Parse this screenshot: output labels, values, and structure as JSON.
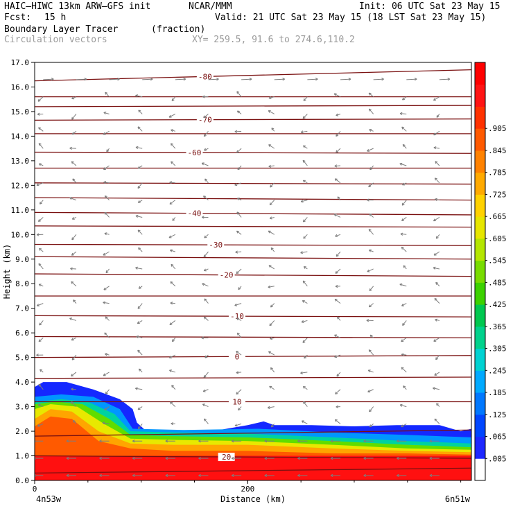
{
  "header": {
    "model": "HAIC–HIWC 13km ARW–GFS init",
    "org": "NCAR/MMM",
    "init": "Init: 06 UTC Sat 23 May 15",
    "fcst_label": "Fcst:",
    "fcst_value": "15 h",
    "valid": "Valid: 21 UTC Sat 23 May 15 (18 LST Sat 23 May 15)",
    "field_name": "Boundary Layer Tracer",
    "field_units": "(fraction)",
    "overlay": "Circulation vectors",
    "xy": "XY= 259.5, 91.6 to 274.6,110.2"
  },
  "chart_data": {
    "type": "heatmap",
    "xlabel": "Distance (km)",
    "ylabel": "Height (km)",
    "xlim": [
      0,
      410
    ],
    "ylim": [
      0,
      17
    ],
    "x_ticks": [
      "0",
      "200"
    ],
    "y_ticks": [
      "0.0",
      "1.0",
      "2.0",
      "3.0",
      "4.0",
      "5.0",
      "6.0",
      "7.0",
      "8.0",
      "9.0",
      "10.0",
      "11.0",
      "12.0",
      "13.0",
      "14.0",
      "15.0",
      "16.0",
      "17.0"
    ],
    "x_endpoints": {
      "left": "4n53w",
      "right": "6n51w"
    },
    "tracer_layers": [
      {
        "level": 0.95,
        "color": "#ff1010",
        "top": [
          [
            0,
            1.0
          ],
          [
            80,
            1.0
          ],
          [
            160,
            1.0
          ],
          [
            260,
            1.0
          ],
          [
            340,
            1.0
          ],
          [
            410,
            1.0
          ]
        ]
      },
      {
        "level": 0.85,
        "color": "#ff5a00",
        "top": [
          [
            0,
            2.2
          ],
          [
            15,
            2.6
          ],
          [
            35,
            2.5
          ],
          [
            60,
            1.6
          ],
          [
            90,
            1.3
          ],
          [
            130,
            1.2
          ],
          [
            200,
            1.2
          ],
          [
            280,
            1.1
          ],
          [
            350,
            1.1
          ],
          [
            410,
            1.05
          ]
        ]
      },
      {
        "level": 0.75,
        "color": "#ffa500",
        "top": [
          [
            0,
            2.5
          ],
          [
            15,
            2.9
          ],
          [
            35,
            2.8
          ],
          [
            60,
            2.0
          ],
          [
            90,
            1.5
          ],
          [
            130,
            1.45
          ],
          [
            200,
            1.45
          ],
          [
            280,
            1.3
          ],
          [
            350,
            1.2
          ],
          [
            410,
            1.15
          ]
        ]
      },
      {
        "level": 0.6,
        "color": "#e8e800",
        "top": [
          [
            0,
            2.9
          ],
          [
            15,
            3.1
          ],
          [
            40,
            3.0
          ],
          [
            65,
            2.3
          ],
          [
            90,
            1.7
          ],
          [
            130,
            1.65
          ],
          [
            200,
            1.6
          ],
          [
            280,
            1.45
          ],
          [
            350,
            1.3
          ],
          [
            410,
            1.25
          ]
        ]
      },
      {
        "level": 0.45,
        "color": "#60dd00",
        "top": [
          [
            0,
            3.1
          ],
          [
            20,
            3.2
          ],
          [
            45,
            3.1
          ],
          [
            70,
            2.5
          ],
          [
            90,
            1.85
          ],
          [
            130,
            1.8
          ],
          [
            200,
            1.75
          ],
          [
            280,
            1.6
          ],
          [
            350,
            1.45
          ],
          [
            410,
            1.35
          ]
        ]
      },
      {
        "level": 0.3,
        "color": "#00d2a0",
        "top": [
          [
            0,
            3.2
          ],
          [
            25,
            3.3
          ],
          [
            50,
            3.2
          ],
          [
            75,
            2.7
          ],
          [
            90,
            2.0
          ],
          [
            130,
            1.95
          ],
          [
            200,
            1.9
          ],
          [
            280,
            1.75
          ],
          [
            350,
            1.6
          ],
          [
            410,
            1.5
          ]
        ]
      },
      {
        "level": 0.15,
        "color": "#0096ff",
        "top": [
          [
            0,
            3.4
          ],
          [
            25,
            3.5
          ],
          [
            55,
            3.4
          ],
          [
            80,
            2.9
          ],
          [
            92,
            2.1
          ],
          [
            140,
            2.05
          ],
          [
            210,
            2.1
          ],
          [
            280,
            1.95
          ],
          [
            350,
            1.85
          ],
          [
            410,
            1.75
          ]
        ]
      },
      {
        "level": 0.05,
        "color": "#1428ff",
        "top": [
          [
            0,
            3.8
          ],
          [
            8,
            4.0
          ],
          [
            30,
            4.0
          ],
          [
            55,
            3.7
          ],
          [
            80,
            3.3
          ],
          [
            92,
            2.9
          ],
          [
            96,
            2.35
          ],
          [
            105,
            2.0
          ],
          [
            130,
            1.9
          ],
          [
            160,
            1.95
          ],
          [
            180,
            2.1
          ],
          [
            200,
            2.25
          ],
          [
            215,
            2.4
          ],
          [
            225,
            2.25
          ],
          [
            260,
            2.25
          ],
          [
            300,
            2.2
          ],
          [
            340,
            2.25
          ],
          [
            380,
            2.25
          ],
          [
            400,
            2.0
          ],
          [
            410,
            2.1
          ]
        ]
      }
    ],
    "temperature_contours": [
      {
        "label": "-80",
        "y0": 16.25,
        "y1": 16.7,
        "lx": 160
      },
      {
        "label": "",
        "y0": 15.6,
        "y1": 15.6
      },
      {
        "label": "",
        "y0": 15.2,
        "y1": 15.25
      },
      {
        "label": "-70",
        "y0": 14.65,
        "y1": 14.7,
        "lx": 160
      },
      {
        "label": "",
        "y0": 14.1,
        "y1": 14.1
      },
      {
        "label": "-60",
        "y0": 13.35,
        "y1": 13.3,
        "lx": 150
      },
      {
        "label": "",
        "y0": 12.7,
        "y1": 12.7
      },
      {
        "label": "",
        "y0": 12.1,
        "y1": 12.05
      },
      {
        "label": "",
        "y0": 11.5,
        "y1": 11.4
      },
      {
        "label": "-40",
        "y0": 10.9,
        "y1": 10.8,
        "lx": 150
      },
      {
        "label": "",
        "y0": 10.35,
        "y1": 10.3
      },
      {
        "label": "-30",
        "y0": 9.6,
        "y1": 9.55,
        "lx": 170
      },
      {
        "label": "",
        "y0": 9.1,
        "y1": 9.0
      },
      {
        "label": "-20",
        "y0": 8.4,
        "y1": 8.3,
        "lx": 180
      },
      {
        "label": "",
        "y0": 7.5,
        "y1": 7.5
      },
      {
        "label": "-10",
        "y0": 6.7,
        "y1": 6.65,
        "lx": 190
      },
      {
        "label": "",
        "y0": 5.85,
        "y1": 5.8
      },
      {
        "label": "0",
        "y0": 5.0,
        "y1": 5.08,
        "lx": 190
      },
      {
        "label": "",
        "y0": 4.15,
        "y1": 4.2
      },
      {
        "label": "10",
        "y0": 3.2,
        "y1": 3.2,
        "lx": 190
      },
      {
        "label": "",
        "y0": 1.8,
        "y1": 2.05
      },
      {
        "label": "20",
        "y0": 1.0,
        "y1": 0.9,
        "lx": 180
      },
      {
        "label": "",
        "y0": 0.3,
        "y1": 0.5
      }
    ],
    "colorbar": {
      "colors": [
        "#ffffff",
        "#1e28ff",
        "#0046ff",
        "#0078ff",
        "#00aaff",
        "#00d2d2",
        "#00d28c",
        "#00c850",
        "#3cd200",
        "#78dc00",
        "#b4e600",
        "#e6e600",
        "#ffd200",
        "#ffaa00",
        "#ff8200",
        "#ff5a00",
        "#ff3200",
        "#ff1414",
        "#ff0000"
      ],
      "labels": [
        ".005",
        ".065",
        ".125",
        ".185",
        ".245",
        ".305",
        ".365",
        ".425",
        ".485",
        ".545",
        ".605",
        ".665",
        ".725",
        ".785",
        ".845",
        ".905"
      ]
    }
  }
}
